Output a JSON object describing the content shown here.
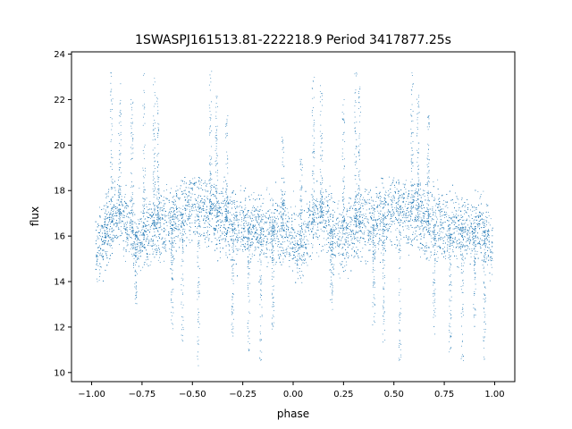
{
  "chart_data": {
    "type": "scatter",
    "title": "1SWASPJ161513.81-222218.9 Period 3417877.25s",
    "xlabel": "phase",
    "ylabel": "flux",
    "xlim": [
      -1.1,
      1.1
    ],
    "ylim": [
      9.6,
      24.1
    ],
    "xticks": [
      -1.0,
      -0.75,
      -0.5,
      -0.25,
      0.0,
      0.25,
      0.5,
      0.75,
      1.0
    ],
    "xtick_labels": [
      "−1.00",
      "−0.75",
      "−0.50",
      "−0.25",
      "0.00",
      "0.25",
      "0.50",
      "0.75",
      "1.00"
    ],
    "yticks": [
      10,
      12,
      14,
      16,
      18,
      20,
      22,
      24
    ],
    "ytick_labels": [
      "10",
      "12",
      "14",
      "16",
      "18",
      "20",
      "22",
      "24"
    ],
    "grid": false,
    "marker_color": "#1f77b4",
    "series": [
      {
        "profile": [
          [
            -0.98,
            15.3
          ],
          [
            -0.95,
            15.6
          ],
          [
            -0.92,
            16.4
          ],
          [
            -0.88,
            16.8
          ],
          [
            -0.85,
            16.9
          ],
          [
            -0.8,
            16.2
          ],
          [
            -0.76,
            15.9
          ],
          [
            -0.72,
            16.1
          ],
          [
            -0.68,
            16.5
          ],
          [
            -0.64,
            16.6
          ],
          [
            -0.6,
            16.5
          ],
          [
            -0.56,
            16.9
          ],
          [
            -0.52,
            17.2
          ],
          [
            -0.48,
            17.4
          ],
          [
            -0.44,
            17.2
          ],
          [
            -0.4,
            16.9
          ],
          [
            -0.36,
            16.7
          ],
          [
            -0.32,
            16.6
          ],
          [
            -0.28,
            16.4
          ],
          [
            -0.24,
            16.5
          ],
          [
            -0.2,
            16.3
          ],
          [
            -0.16,
            16.4
          ],
          [
            -0.12,
            16.4
          ],
          [
            -0.08,
            16.3
          ],
          [
            -0.04,
            16.2
          ],
          [
            0.0,
            15.9
          ],
          [
            0.02,
            15.3
          ],
          [
            0.05,
            15.6
          ],
          [
            0.08,
            16.4
          ],
          [
            0.12,
            16.8
          ],
          [
            0.15,
            16.9
          ],
          [
            0.2,
            16.2
          ],
          [
            0.24,
            15.9
          ],
          [
            0.28,
            16.1
          ],
          [
            0.32,
            16.5
          ],
          [
            0.36,
            16.6
          ],
          [
            0.4,
            16.5
          ],
          [
            0.44,
            16.9
          ],
          [
            0.48,
            17.2
          ],
          [
            0.52,
            17.4
          ],
          [
            0.56,
            17.2
          ],
          [
            0.6,
            16.9
          ],
          [
            0.64,
            16.7
          ],
          [
            0.68,
            16.6
          ],
          [
            0.72,
            16.4
          ],
          [
            0.76,
            16.5
          ],
          [
            0.8,
            16.3
          ],
          [
            0.84,
            16.4
          ],
          [
            0.88,
            16.4
          ],
          [
            0.92,
            16.3
          ],
          [
            0.96,
            16.2
          ],
          [
            0.99,
            15.3
          ]
        ],
        "scatter_range": [
          13.9,
          18.6
        ],
        "outliers": [
          [
            -0.9,
            23.2
          ],
          [
            -0.86,
            22.7
          ],
          [
            -0.8,
            22.0
          ],
          [
            -0.78,
            12.7
          ],
          [
            -0.74,
            23.3
          ],
          [
            -0.69,
            23.1
          ],
          [
            -0.67,
            22.2
          ],
          [
            -0.6,
            11.9
          ],
          [
            -0.55,
            11.3
          ],
          [
            -0.47,
            10.3
          ],
          [
            -0.41,
            23.3
          ],
          [
            -0.38,
            22.4
          ],
          [
            -0.33,
            21.3
          ],
          [
            -0.3,
            11.6
          ],
          [
            -0.22,
            10.9
          ],
          [
            -0.16,
            10.5
          ],
          [
            -0.1,
            11.9
          ],
          [
            -0.05,
            20.4
          ],
          [
            0.04,
            19.5
          ],
          [
            0.1,
            23.2
          ],
          [
            0.14,
            22.7
          ],
          [
            0.19,
            12.7
          ],
          [
            0.25,
            22.2
          ],
          [
            0.31,
            23.3
          ],
          [
            0.33,
            23.1
          ],
          [
            0.4,
            11.9
          ],
          [
            0.45,
            11.3
          ],
          [
            0.53,
            10.3
          ],
          [
            0.59,
            23.3
          ],
          [
            0.62,
            22.4
          ],
          [
            0.67,
            21.3
          ],
          [
            0.7,
            11.6
          ],
          [
            0.78,
            10.9
          ],
          [
            0.84,
            10.5
          ],
          [
            0.9,
            11.9
          ],
          [
            0.95,
            10.5
          ]
        ]
      }
    ]
  }
}
